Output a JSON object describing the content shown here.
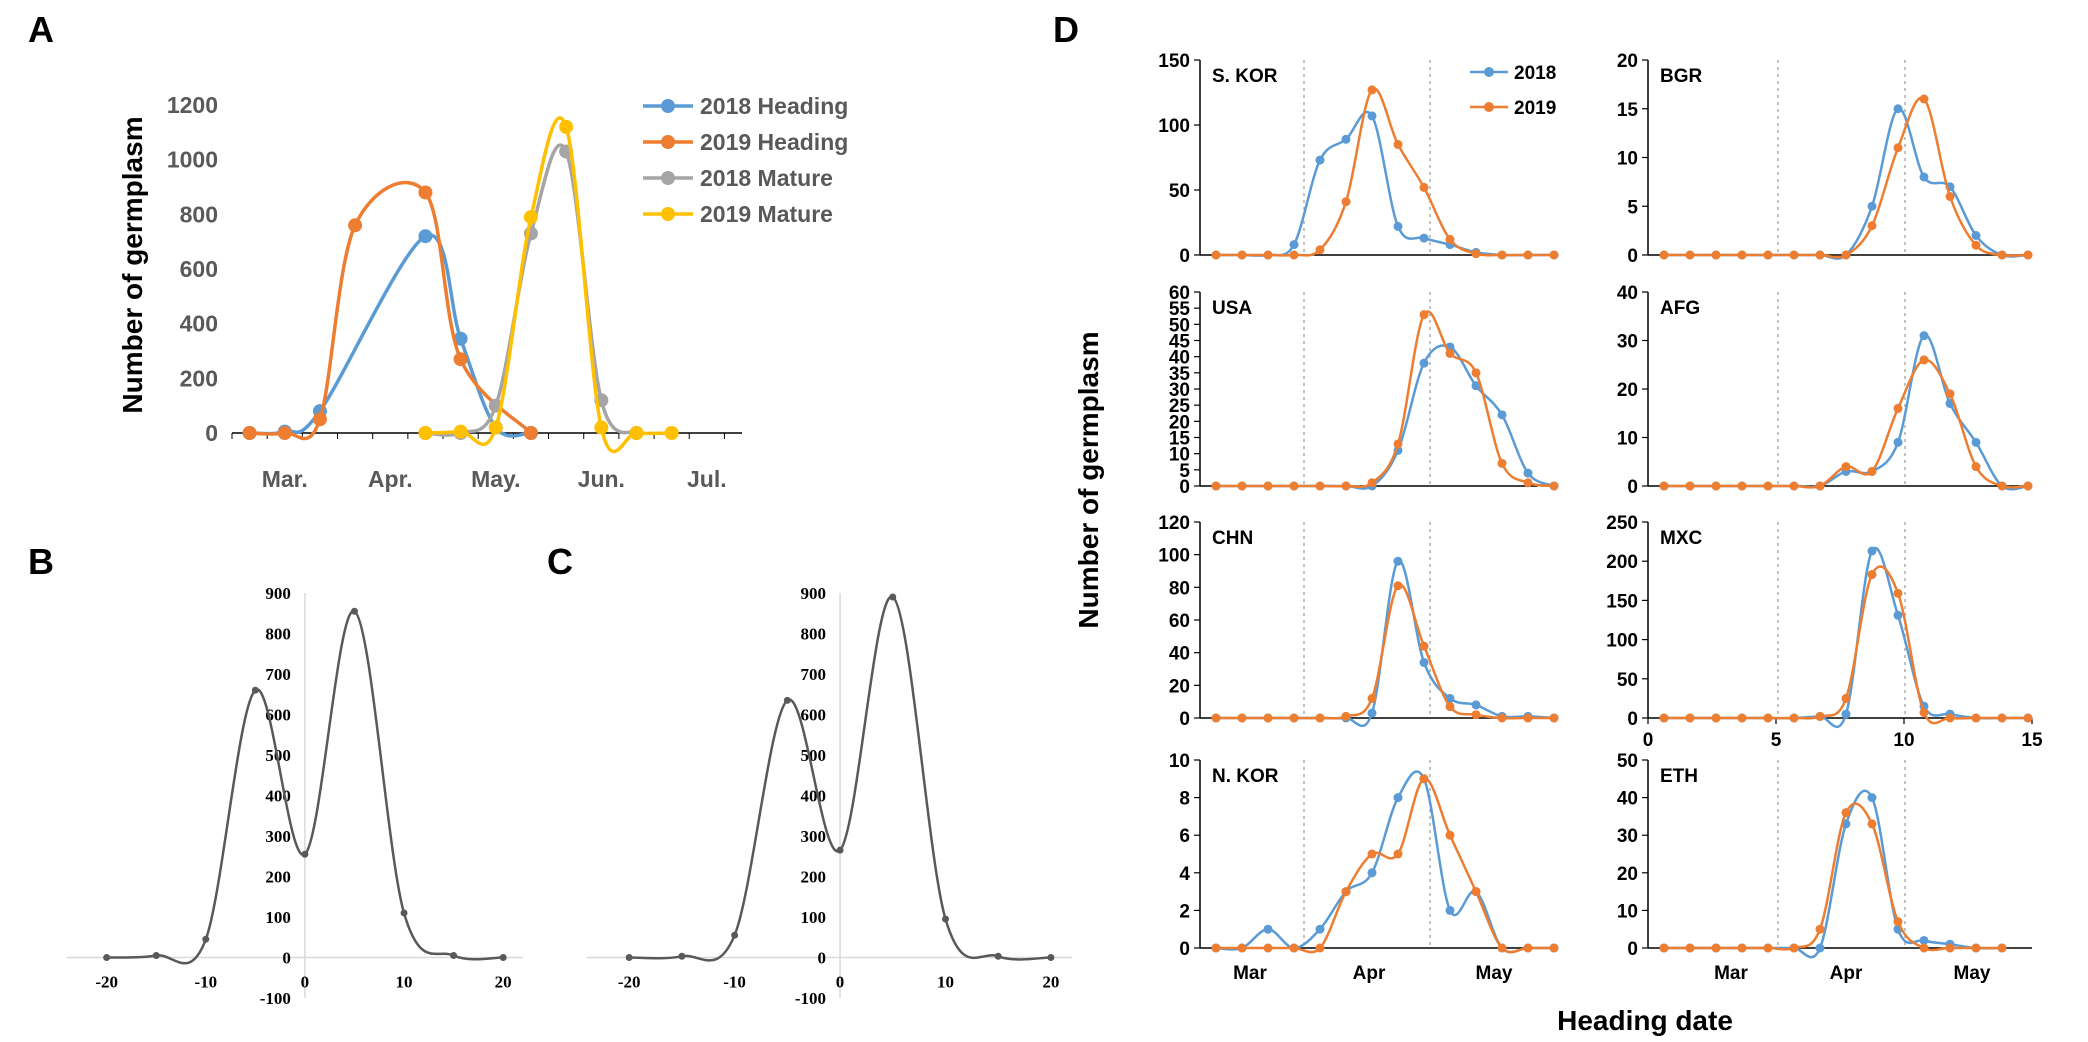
{
  "figure": {
    "panel_labels": [
      "A",
      "B",
      "C",
      "D"
    ],
    "d_ylabel": "Number of germplasm",
    "d_xlabel": "Heading date"
  },
  "colors": {
    "2018": "#5B9BD5",
    "2019": "#ED7D31",
    "mature2018": "#A5A5A5",
    "mature2019": "#FFC000",
    "gray_curve": "#595959",
    "axis": "#000000"
  },
  "chart_data": [
    {
      "id": "A",
      "type": "line",
      "title": "",
      "ylabel": "Number of germplasm",
      "ylim": [
        0,
        1200
      ],
      "yticks": [
        "0",
        "200",
        "400",
        "600",
        "800",
        "1000",
        "1200"
      ],
      "xlim": [
        -0.5,
        14
      ],
      "xtick_labels": [
        "Mar.",
        "Apr.",
        "May.",
        "Jun.",
        "Jul."
      ],
      "xtick_pos": [
        1,
        4,
        7,
        10,
        13
      ],
      "series": [
        {
          "name": "2018 Heading",
          "color": "#5B9BD5",
          "x": [
            0,
            1,
            2,
            5,
            6,
            7,
            8
          ],
          "y": [
            0,
            5,
            80,
            720,
            345,
            20,
            0
          ]
        },
        {
          "name": "2019 Heading",
          "color": "#ED7D31",
          "x": [
            0,
            1,
            2,
            3,
            5,
            6,
            8
          ],
          "y": [
            0,
            0,
            50,
            760,
            880,
            270,
            0
          ]
        },
        {
          "name": "2018 Mature",
          "color": "#A5A5A5",
          "x": [
            5,
            6,
            7,
            8,
            9,
            10,
            11
          ],
          "y": [
            0,
            0,
            100,
            730,
            1030,
            120,
            0
          ]
        },
        {
          "name": "2019 Mature",
          "color": "#FFC000",
          "x": [
            5,
            6,
            7,
            8,
            9,
            10,
            11,
            12
          ],
          "y": [
            0,
            5,
            20,
            790,
            1120,
            20,
            0,
            0
          ]
        }
      ]
    },
    {
      "id": "B",
      "type": "line",
      "ylim": [
        -100,
        900
      ],
      "yticks": [
        "-100",
        "0",
        "100",
        "200",
        "300",
        "400",
        "500",
        "600",
        "700",
        "800",
        "900"
      ],
      "xlim": [
        -24,
        22
      ],
      "xticks": [
        "-20",
        "-10",
        "0",
        "10",
        "20"
      ],
      "series": [
        {
          "name": "curve",
          "x": [
            -20,
            -15,
            -10,
            -5,
            0,
            5,
            10,
            15,
            20
          ],
          "y": [
            0,
            5,
            45,
            660,
            255,
            855,
            110,
            5,
            0
          ]
        }
      ]
    },
    {
      "id": "C",
      "type": "line",
      "ylim": [
        -100,
        900
      ],
      "yticks": [
        "-100",
        "0",
        "100",
        "200",
        "300",
        "400",
        "500",
        "600",
        "700",
        "800",
        "900"
      ],
      "xlim": [
        -24,
        22
      ],
      "xticks": [
        "-20",
        "-10",
        "0",
        "10",
        "20"
      ],
      "series": [
        {
          "name": "curve",
          "x": [
            -20,
            -15,
            -10,
            -5,
            0,
            5,
            10,
            15,
            20
          ],
          "y": [
            0,
            3,
            55,
            635,
            265,
            890,
            95,
            3,
            0
          ]
        }
      ]
    },
    {
      "id": "D",
      "type": "line",
      "legend": [
        "2018",
        "2019"
      ],
      "month_labels": [
        "Mar",
        "Apr",
        "May"
      ],
      "subplots": [
        {
          "country": "S. KOR",
          "ylim": [
            0,
            150
          ],
          "yticks": [
            "0",
            "50",
            "100",
            "150"
          ],
          "s2018": [
            0,
            0,
            0,
            8,
            73,
            89,
            107,
            22,
            13,
            8,
            2,
            0,
            0,
            0
          ],
          "s2019": [
            0,
            0,
            0,
            0,
            4,
            41,
            127,
            85,
            52,
            12,
            1,
            0,
            0,
            0
          ]
        },
        {
          "country": "BGR",
          "ylim": [
            0,
            20
          ],
          "yticks": [
            "0",
            "5",
            "10",
            "15",
            "20"
          ],
          "s2018": [
            0,
            0,
            0,
            0,
            0,
            0,
            0,
            0,
            5,
            15,
            8,
            7,
            2,
            0,
            0
          ],
          "s2019": [
            0,
            0,
            0,
            0,
            0,
            0,
            0,
            0,
            3,
            11,
            16,
            6,
            1,
            0,
            0
          ]
        },
        {
          "country": "USA",
          "ylim": [
            0,
            60
          ],
          "yticks": [
            "0",
            "5",
            "10",
            "15",
            "20",
            "25",
            "30",
            "35",
            "40",
            "45",
            "50",
            "55",
            "60"
          ],
          "s2018": [
            0,
            0,
            0,
            0,
            0,
            0,
            0,
            11,
            38,
            43,
            31,
            22,
            4,
            0
          ],
          "s2019": [
            0,
            0,
            0,
            0,
            0,
            0,
            1,
            13,
            53,
            41,
            35,
            7,
            1,
            0
          ]
        },
        {
          "country": "AFG",
          "ylim": [
            0,
            40
          ],
          "yticks": [
            "0",
            "10",
            "20",
            "30",
            "40"
          ],
          "s2018": [
            0,
            0,
            0,
            0,
            0,
            0,
            0,
            3,
            3,
            9,
            31,
            17,
            9,
            0,
            0
          ],
          "s2019": [
            0,
            0,
            0,
            0,
            0,
            0,
            0,
            4,
            3,
            16,
            26,
            19,
            4,
            0,
            0
          ]
        },
        {
          "country": "CHN",
          "ylim": [
            0,
            120
          ],
          "yticks": [
            "0",
            "20",
            "40",
            "60",
            "80",
            "100",
            "120"
          ],
          "s2018": [
            0,
            0,
            0,
            0,
            0,
            0,
            3,
            96,
            34,
            12,
            8,
            1,
            1,
            0
          ],
          "s2019": [
            0,
            0,
            0,
            0,
            0,
            1,
            12,
            81,
            44,
            7,
            2,
            0,
            0,
            0
          ]
        },
        {
          "country": "MXC",
          "ylim": [
            0,
            250
          ],
          "yticks": [
            "0",
            "50",
            "100",
            "150",
            "200",
            "250"
          ],
          "xticks": [
            "0",
            "5",
            "10",
            "15"
          ],
          "s2018": [
            0,
            0,
            0,
            0,
            0,
            0,
            2,
            5,
            213,
            131,
            15,
            5,
            0,
            0,
            0
          ],
          "s2019": [
            0,
            0,
            0,
            0,
            0,
            0,
            2,
            25,
            183,
            159,
            7,
            0,
            0,
            0,
            0
          ]
        },
        {
          "country": "N. KOR",
          "ylim": [
            0,
            10
          ],
          "yticks": [
            "0",
            "2",
            "4",
            "6",
            "8",
            "10"
          ],
          "s2018": [
            0,
            0,
            1,
            0,
            1,
            3,
            4,
            8,
            9,
            2,
            3,
            0,
            0,
            0
          ],
          "s2019": [
            0,
            0,
            0,
            0,
            0,
            3,
            5,
            5,
            9,
            6,
            3,
            0,
            0,
            0
          ]
        },
        {
          "country": "ETH",
          "ylim": [
            0,
            50
          ],
          "yticks": [
            "0",
            "10",
            "20",
            "30",
            "40",
            "50"
          ],
          "s2018": [
            0,
            0,
            0,
            0,
            0,
            0,
            0,
            33,
            40,
            5,
            2,
            1,
            0,
            0
          ],
          "s2019": [
            0,
            0,
            0,
            0,
            0,
            0,
            5,
            36,
            33,
            7,
            0,
            0,
            0,
            0
          ]
        }
      ]
    }
  ]
}
